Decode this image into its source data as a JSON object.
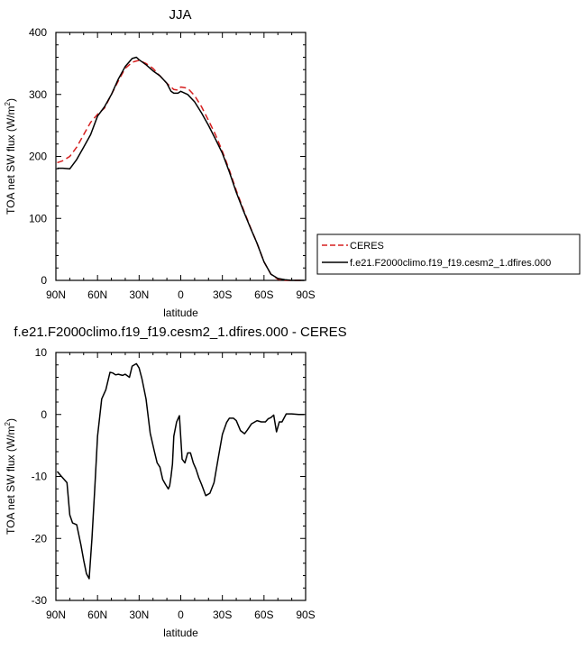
{
  "chart_data": [
    {
      "type": "line",
      "title": "JJA",
      "xlabel": "latitude",
      "ylabel": "TOA net SW flux (W/m",
      "ylabel_sup": "2",
      "ylabel_tail": ")",
      "xlim": [
        90,
        -90
      ],
      "ylim": [
        0,
        400
      ],
      "xtick_values": [
        90,
        60,
        30,
        0,
        -30,
        -60,
        -90
      ],
      "xtick_labels": [
        "90N",
        "60N",
        "30N",
        "0",
        "30S",
        "60S",
        "90S"
      ],
      "ytick_values": [
        0,
        100,
        200,
        300,
        400
      ],
      "ytick_labels": [
        "0",
        "100",
        "200",
        "300",
        "400"
      ],
      "legend_position": "outside-right",
      "series": [
        {
          "name": "CERES",
          "color": "#d62020",
          "style": "dashed",
          "x": [
            89,
            85,
            80,
            75,
            70,
            65,
            60,
            55,
            50,
            45,
            40,
            35,
            30,
            25,
            20,
            15,
            10,
            5,
            2,
            0,
            -5,
            -10,
            -15,
            -20,
            -25,
            -30,
            -35,
            -40,
            -45,
            -50,
            -55,
            -60,
            -65,
            -70,
            -75,
            -80,
            -85,
            -89
          ],
          "y": [
            190,
            193,
            200,
            215,
            235,
            255,
            268,
            278,
            300,
            322,
            342,
            352,
            355,
            350,
            342,
            330,
            318,
            308,
            307,
            312,
            310,
            298,
            280,
            258,
            235,
            208,
            178,
            145,
            115,
            87,
            60,
            30,
            10,
            2,
            0,
            0,
            0,
            0
          ]
        },
        {
          "name": "f.e21.F2000climo.f19_f19.cesm2_1.dfires.000",
          "color": "#000000",
          "style": "solid",
          "x": [
            89,
            85,
            80,
            75,
            70,
            65,
            60,
            55,
            50,
            45,
            40,
            35,
            32,
            30,
            25,
            20,
            15,
            10,
            7,
            5,
            2,
            0,
            -5,
            -10,
            -15,
            -20,
            -25,
            -30,
            -35,
            -40,
            -45,
            -50,
            -55,
            -60,
            -65,
            -70,
            -75,
            -80,
            -85,
            -89
          ],
          "y": [
            181,
            181,
            180,
            195,
            215,
            235,
            265,
            280,
            300,
            325,
            345,
            358,
            360,
            356,
            348,
            338,
            330,
            318,
            305,
            302,
            302,
            305,
            300,
            288,
            270,
            250,
            228,
            205,
            175,
            142,
            113,
            86,
            60,
            30,
            10,
            3,
            1,
            0,
            0,
            0
          ]
        }
      ]
    },
    {
      "type": "line",
      "title": "f.e21.F2000climo.f19_f19.cesm2_1.dfires.000 - CERES",
      "xlabel": "latitude",
      "ylabel": "TOA net SW flux (W/m",
      "ylabel_sup": "2",
      "ylabel_tail": ")",
      "xlim": [
        90,
        -90
      ],
      "ylim": [
        -30,
        10
      ],
      "xtick_values": [
        90,
        60,
        30,
        0,
        -30,
        -60,
        -90
      ],
      "xtick_labels": [
        "90N",
        "60N",
        "30N",
        "0",
        "30S",
        "60S",
        "90S"
      ],
      "ytick_values": [
        -30,
        -20,
        -10,
        0,
        10
      ],
      "ytick_labels": [
        "-30",
        "-20",
        "-10",
        "0",
        "10"
      ],
      "series": [
        {
          "color": "#000000",
          "style": "solid",
          "x": [
            89,
            86,
            82,
            80,
            78,
            75,
            72,
            70,
            68,
            66,
            64,
            62,
            60,
            57,
            54,
            51,
            49,
            47,
            45,
            42,
            40,
            37,
            35,
            32,
            30,
            28,
            25,
            22,
            19,
            17,
            15,
            13,
            11,
            9,
            8,
            7,
            6,
            5,
            3,
            1,
            -1,
            -3,
            -5,
            -7,
            -9,
            -11,
            -13,
            -15,
            -18,
            -21,
            -24,
            -27,
            -30,
            -33,
            -35,
            -38,
            -40,
            -43,
            -46,
            -48,
            -51,
            -55,
            -58,
            -61,
            -63,
            -65,
            -67,
            -69,
            -71,
            -73,
            -76,
            -80,
            -85,
            -89
          ],
          "y": [
            -9.2,
            -10,
            -11,
            -16.2,
            -17.5,
            -17.8,
            -21,
            -23.5,
            -25.7,
            -26.5,
            -20,
            -12,
            -3.5,
            2.5,
            4,
            6.8,
            6.7,
            6.4,
            6.5,
            6.3,
            6.5,
            6.0,
            7.8,
            8.2,
            7.5,
            5.8,
            2.5,
            -3,
            -6,
            -7.8,
            -8.5,
            -10.5,
            -11.3,
            -12,
            -11.5,
            -10,
            -8,
            -3.5,
            -1.2,
            -0.2,
            -7.2,
            -7.8,
            -6.2,
            -6.2,
            -7.8,
            -8.8,
            -10.2,
            -11.3,
            -13.1,
            -12.7,
            -11.0,
            -7.0,
            -3.2,
            -1.3,
            -0.6,
            -0.6,
            -1.0,
            -2.6,
            -3.1,
            -2.5,
            -1.5,
            -1.0,
            -1.2,
            -1.2,
            -0.7,
            -0.5,
            -0.1,
            -2.8,
            -1.2,
            -1.2,
            0.1,
            0.1,
            0,
            0
          ]
        }
      ]
    }
  ]
}
